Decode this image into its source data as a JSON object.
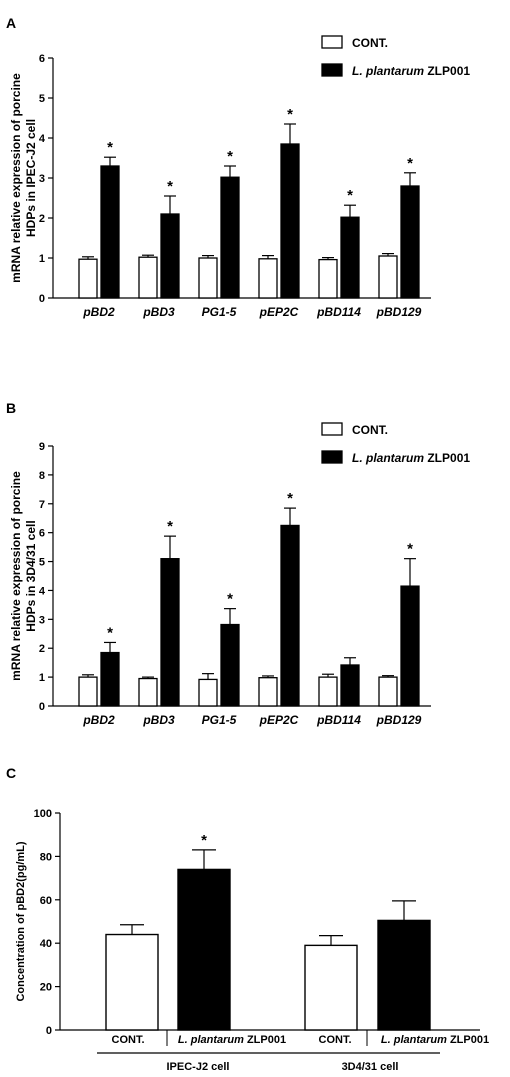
{
  "chart_data": [
    {
      "panel_label": "A",
      "type": "bar",
      "ylabel": [
        "mRNA relative expression of porcine",
        "HDPs in IPEC-J2 cell"
      ],
      "ylim": [
        0,
        6
      ],
      "yticks": [
        0,
        1,
        2,
        3,
        4,
        5,
        6
      ],
      "categories": [
        "pBD2",
        "pBD3",
        "PG1-5",
        "pEP2C",
        "pBD114",
        "pBD129"
      ],
      "series": [
        {
          "name": "CONT.",
          "color": "#ffffff",
          "values": [
            0.97,
            1.02,
            1.0,
            0.98,
            0.96,
            1.05
          ],
          "errors": [
            0.06,
            0.05,
            0.06,
            0.08,
            0.05,
            0.06
          ]
        },
        {
          "name_italic": "L. plantarum",
          "name_rest": " ZLP001",
          "color": "#000000",
          "values": [
            3.3,
            2.1,
            3.02,
            3.85,
            2.02,
            2.8
          ],
          "errors": [
            0.22,
            0.45,
            0.28,
            0.5,
            0.3,
            0.33
          ]
        }
      ],
      "significance": [
        {
          "category": 0,
          "series": 1,
          "text": "*"
        },
        {
          "category": 1,
          "series": 1,
          "text": "*"
        },
        {
          "category": 2,
          "series": 1,
          "text": "*"
        },
        {
          "category": 3,
          "series": 1,
          "text": "*"
        },
        {
          "category": 4,
          "series": 1,
          "text": "*"
        },
        {
          "category": 5,
          "series": 1,
          "text": "*"
        }
      ],
      "legend_position": "top-right"
    },
    {
      "panel_label": "B",
      "type": "bar",
      "ylabel": [
        "mRNA relative expression of porcine",
        "HDPs in 3D4/31 cell"
      ],
      "ylim": [
        0,
        9
      ],
      "yticks": [
        0,
        1,
        2,
        3,
        4,
        5,
        6,
        7,
        8,
        9
      ],
      "categories": [
        "pBD2",
        "pBD3",
        "PG1-5",
        "pEP2C",
        "pBD114",
        "pBD129"
      ],
      "series": [
        {
          "name": "CONT.",
          "color": "#ffffff",
          "values": [
            1.0,
            0.95,
            0.92,
            0.98,
            1.0,
            1.0
          ],
          "errors": [
            0.08,
            0.05,
            0.2,
            0.06,
            0.1,
            0.05
          ]
        },
        {
          "name_italic": "L. plantarum",
          "name_rest": " ZLP001",
          "color": "#000000",
          "values": [
            1.85,
            5.1,
            2.82,
            6.25,
            1.42,
            4.15
          ],
          "errors": [
            0.35,
            0.78,
            0.55,
            0.6,
            0.25,
            0.95
          ]
        }
      ],
      "significance": [
        {
          "category": 0,
          "series": 1,
          "text": "*"
        },
        {
          "category": 1,
          "series": 1,
          "text": "*"
        },
        {
          "category": 2,
          "series": 1,
          "text": "*"
        },
        {
          "category": 3,
          "series": 1,
          "text": "*"
        },
        {
          "category": 5,
          "series": 1,
          "text": "*"
        }
      ],
      "legend_position": "top-right"
    },
    {
      "panel_label": "C",
      "type": "bar",
      "ylabel": "Concentration of pBD2(pg/mL)",
      "ylim": [
        0,
        100
      ],
      "yticks": [
        0,
        20,
        40,
        60,
        80,
        100
      ],
      "groups": [
        {
          "label": "IPEC-J2 cell",
          "bars": [
            {
              "label": "CONT.",
              "color": "#ffffff",
              "value": 44,
              "error": 4.5
            },
            {
              "label_italic": "L. plantarum",
              "label_rest": " ZLP001",
              "color": "#000000",
              "value": 74,
              "error": 9,
              "significance": "*"
            }
          ]
        },
        {
          "label": "3D4/31 cell",
          "bars": [
            {
              "label": "CONT.",
              "color": "#ffffff",
              "value": 39,
              "error": 4.5
            },
            {
              "label_italic": "L. plantarum",
              "label_rest": " ZLP001",
              "color": "#000000",
              "value": 50.5,
              "error": 9
            }
          ]
        }
      ]
    }
  ]
}
